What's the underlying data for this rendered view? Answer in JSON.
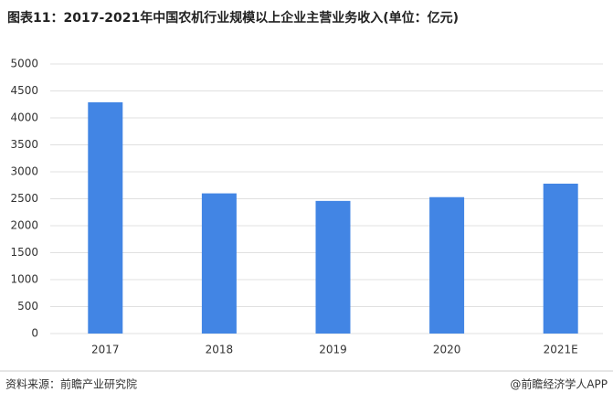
{
  "chart_data": {
    "type": "bar",
    "title": "图表11：2017-2021年中国农机行业规模以上企业主营业务收入(单位：亿元)",
    "categories": [
      "2017",
      "2018",
      "2019",
      "2020",
      "2021E"
    ],
    "values": [
      4290,
      2600,
      2460,
      2530,
      2780
    ],
    "color": "#4285e4",
    "ylim": [
      0,
      5000
    ],
    "yticks": [
      0,
      500,
      1000,
      1500,
      2000,
      2500,
      3000,
      3500,
      4000,
      4500,
      5000
    ],
    "grid": true
  },
  "footer": {
    "source": "资料来源：前瞻产业研究院",
    "credit": "@前瞻经济学人APP"
  }
}
